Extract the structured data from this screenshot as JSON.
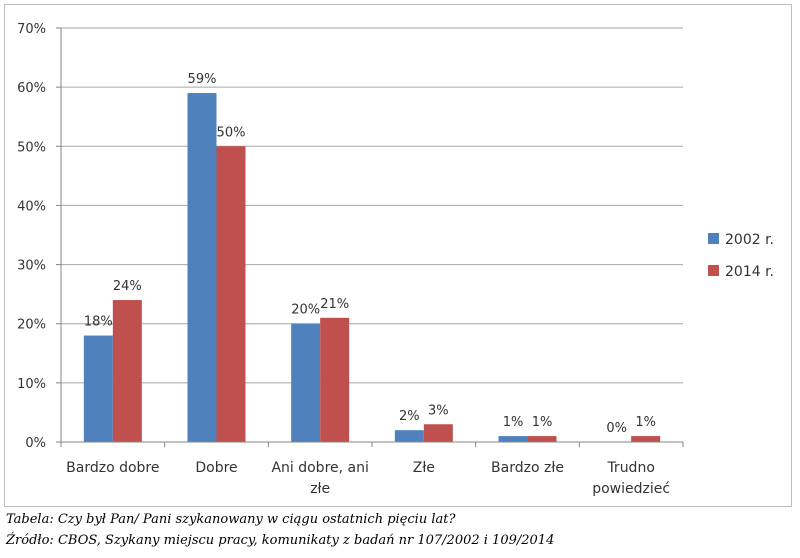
{
  "chart_data": {
    "type": "bar",
    "categories": [
      [
        "Bardzo dobre"
      ],
      [
        "Dobre"
      ],
      [
        "Ani dobre, ani",
        "złe"
      ],
      [
        "Złe"
      ],
      [
        "Bardzo złe"
      ],
      [
        "Trudno",
        "powiedzieć"
      ]
    ],
    "series": [
      {
        "name": "2002 r.",
        "color": "#4f81bd",
        "values": [
          18,
          59,
          20,
          2,
          1,
          0
        ],
        "labels": [
          "18%",
          "59%",
          "20%",
          "2%",
          "1%",
          "0%"
        ]
      },
      {
        "name": "2014 r.",
        "color": "#c0504d",
        "values": [
          24,
          50,
          21,
          3,
          1,
          1
        ],
        "labels": [
          "24%",
          "50%",
          "21%",
          "3%",
          "1%",
          "1%"
        ]
      }
    ],
    "ylim": [
      0,
      70
    ],
    "yticks": [
      0,
      10,
      20,
      30,
      40,
      50,
      60,
      70
    ],
    "ytick_labels": [
      "0%",
      "10%",
      "20%",
      "30%",
      "40%",
      "50%",
      "60%",
      "70%"
    ],
    "grid": true,
    "legend_position": "right"
  },
  "captions": {
    "question": "Tabela: Czy był Pan/ Pani szykanowany w ciągu ostatnich pięciu lat?",
    "source": "Źródło: CBOS, Szykany miejscu pracy, komunikaty z badań nr 107/2002 i 109/2014"
  }
}
